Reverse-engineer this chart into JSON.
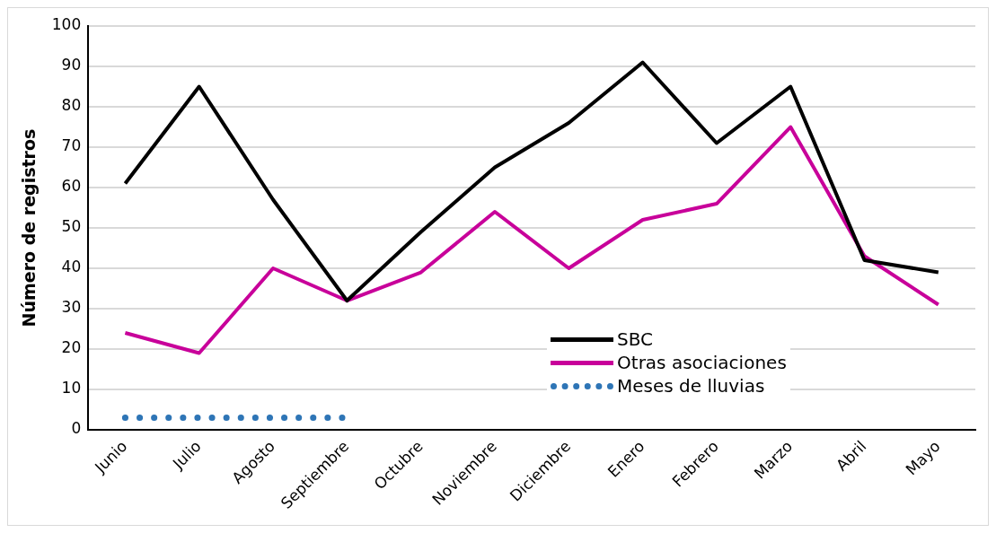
{
  "chart_data": {
    "type": "line",
    "ylabel": "Número de registros",
    "categories": [
      "Junio",
      "Julio",
      "Agosto",
      "Septiembre",
      "Octubre",
      "Noviembre",
      "Diciembre",
      "Enero",
      "Febrero",
      "Marzo",
      "Abril",
      "Mayo"
    ],
    "series": [
      {
        "name": "SBC",
        "color": "#000000",
        "values": [
          61,
          85,
          57,
          32,
          49,
          65,
          76,
          91,
          71,
          85,
          42,
          39
        ]
      },
      {
        "name": "Otras asociaciones",
        "color": "#c8009a",
        "values": [
          24,
          19,
          40,
          32,
          39,
          54,
          40,
          52,
          56,
          75,
          43,
          31
        ]
      },
      {
        "name": "Meses de lluvias",
        "color": "#2e75b6",
        "line_style": "dotted",
        "values": [
          3,
          3,
          3,
          3,
          null,
          null,
          null,
          null,
          null,
          null,
          null,
          null
        ]
      }
    ],
    "ylim": [
      0,
      100
    ],
    "yticks": [
      0,
      10,
      20,
      30,
      40,
      50,
      60,
      70,
      80,
      90,
      100
    ],
    "grid": "y",
    "legend": "bottom",
    "marker": "none"
  }
}
